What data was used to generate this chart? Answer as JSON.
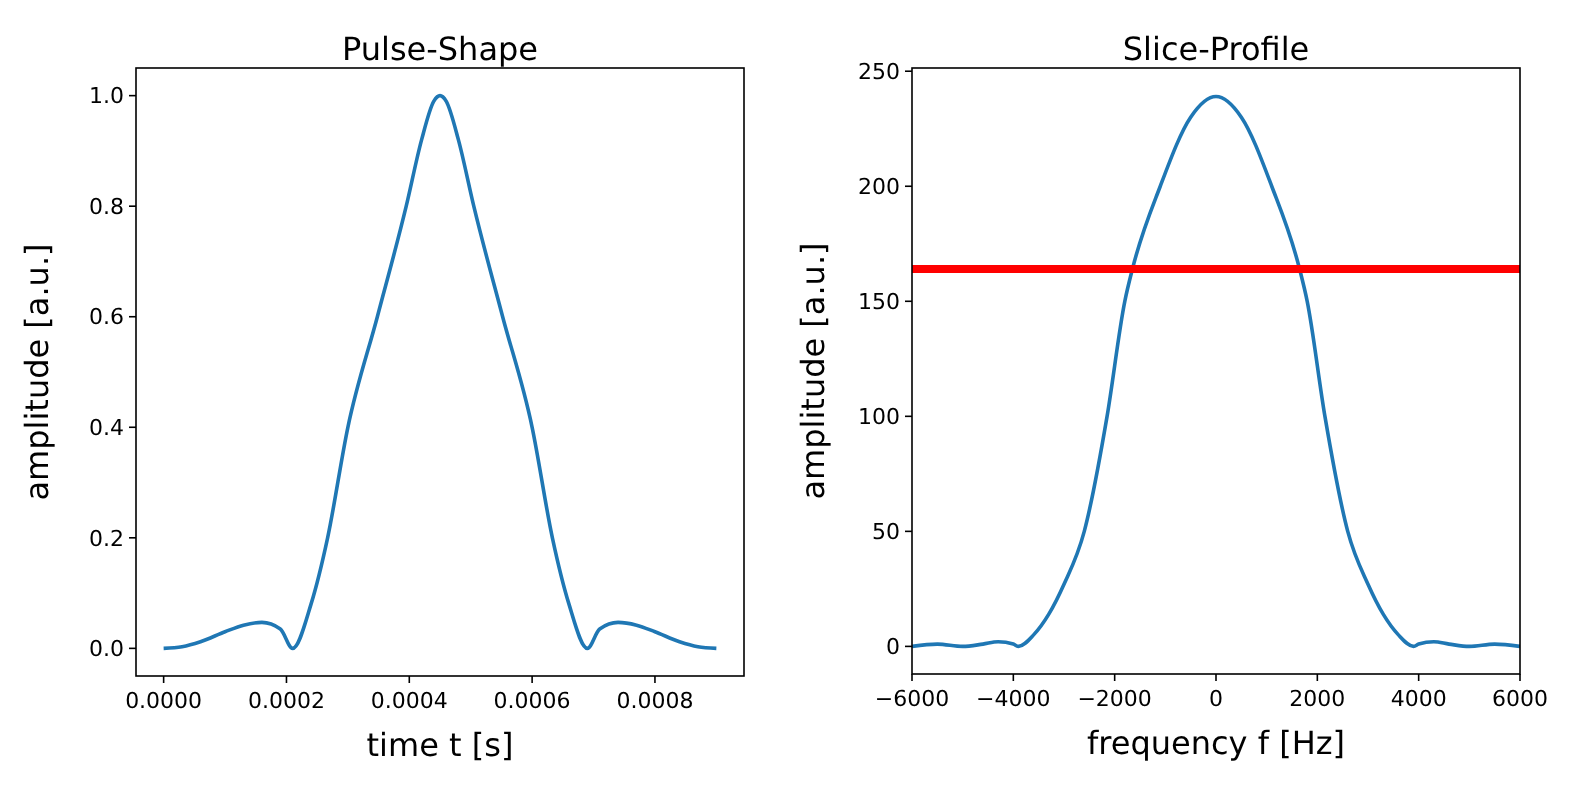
{
  "chart_data": [
    {
      "type": "line",
      "title": "Pulse-Shape",
      "xlabel": "time t [s]",
      "ylabel": "amplitude [a.u.]",
      "xlim": [
        -4.5e-05,
        0.000945
      ],
      "ylim": [
        -0.05,
        1.05
      ],
      "xticks": [
        {
          "value": 0,
          "label": "0.0000"
        },
        {
          "value": 0.0002,
          "label": "0.0002"
        },
        {
          "value": 0.0004,
          "label": "0.0004"
        },
        {
          "value": 0.0006,
          "label": "0.0006"
        },
        {
          "value": 0.0008,
          "label": "0.0008"
        }
      ],
      "yticks": [
        {
          "value": 0,
          "label": "0.0"
        },
        {
          "value": 0.2,
          "label": "0.2"
        },
        {
          "value": 0.4,
          "label": "0.4"
        },
        {
          "value": 0.6,
          "label": "0.6"
        },
        {
          "value": 0.8,
          "label": "0.8"
        },
        {
          "value": 1,
          "label": "1.0"
        }
      ],
      "grid": false,
      "marker": "none",
      "line_style": "solid",
      "series": [
        {
          "color": "#1f77b4",
          "x": [
            0,
            3e-05,
            6e-05,
            0.0001,
            0.00013,
            0.00016,
            0.00019,
            0.00021,
            0.00024,
            0.000267,
            0.0003,
            0.000348,
            0.000395,
            0.00042,
            0.00044,
            0.00045,
            0.00046,
            0.00048,
            0.000505,
            0.000552,
            0.0006,
            0.000633,
            0.00066,
            0.00069,
            0.00071,
            0.00074,
            0.00077,
            0.0008,
            0.00084,
            0.00087,
            0.0009
          ],
          "values": [
            0,
            0.003,
            0.012,
            0.03,
            0.042,
            0.047,
            0.035,
            0,
            0.08,
            0.2,
            0.4,
            0.6,
            0.8,
            0.92,
            0.99,
            1,
            0.99,
            0.92,
            0.8,
            0.6,
            0.4,
            0.2,
            0.08,
            0,
            0.035,
            0.047,
            0.042,
            0.03,
            0.012,
            0.003,
            0
          ]
        }
      ]
    },
    {
      "type": "line",
      "title": "Slice-Profile",
      "xlabel": "frequency f [Hz]",
      "ylabel": "amplitude [a.u.]",
      "xlim": [
        -6000,
        6000
      ],
      "ylim": [
        -12,
        251.4
      ],
      "xticks": [
        {
          "value": -6000,
          "label": "−6000"
        },
        {
          "value": -4000,
          "label": "−4000"
        },
        {
          "value": -2000,
          "label": "−2000"
        },
        0,
        2000,
        4000,
        6000
      ],
      "yticks": [
        0,
        50,
        100,
        150,
        200,
        250
      ],
      "grid": false,
      "marker": "none",
      "line_style": "solid",
      "ref_lines": [
        {
          "axis": "y",
          "value": 164,
          "color": "#ff0000"
        }
      ],
      "series": [
        {
          "color": "#1f77b4",
          "x": [
            -6000,
            -5500,
            -5000,
            -4600,
            -4300,
            -4000,
            -3900,
            -3600,
            -3300,
            -3000,
            -2600,
            -2150,
            -1800,
            -1650,
            -1100,
            -500,
            0,
            500,
            1100,
            1650,
            1800,
            2150,
            2600,
            3000,
            3300,
            3600,
            3900,
            4000,
            4300,
            4600,
            5000,
            5500,
            6000
          ],
          "values": [
            0,
            1,
            0,
            1,
            2,
            1,
            0,
            5,
            14,
            27,
            50,
            100,
            150,
            164,
            200,
            230,
            239,
            230,
            200,
            164,
            150,
            100,
            50,
            27,
            14,
            5,
            0,
            1,
            2,
            1,
            0,
            1,
            0
          ]
        }
      ]
    }
  ]
}
